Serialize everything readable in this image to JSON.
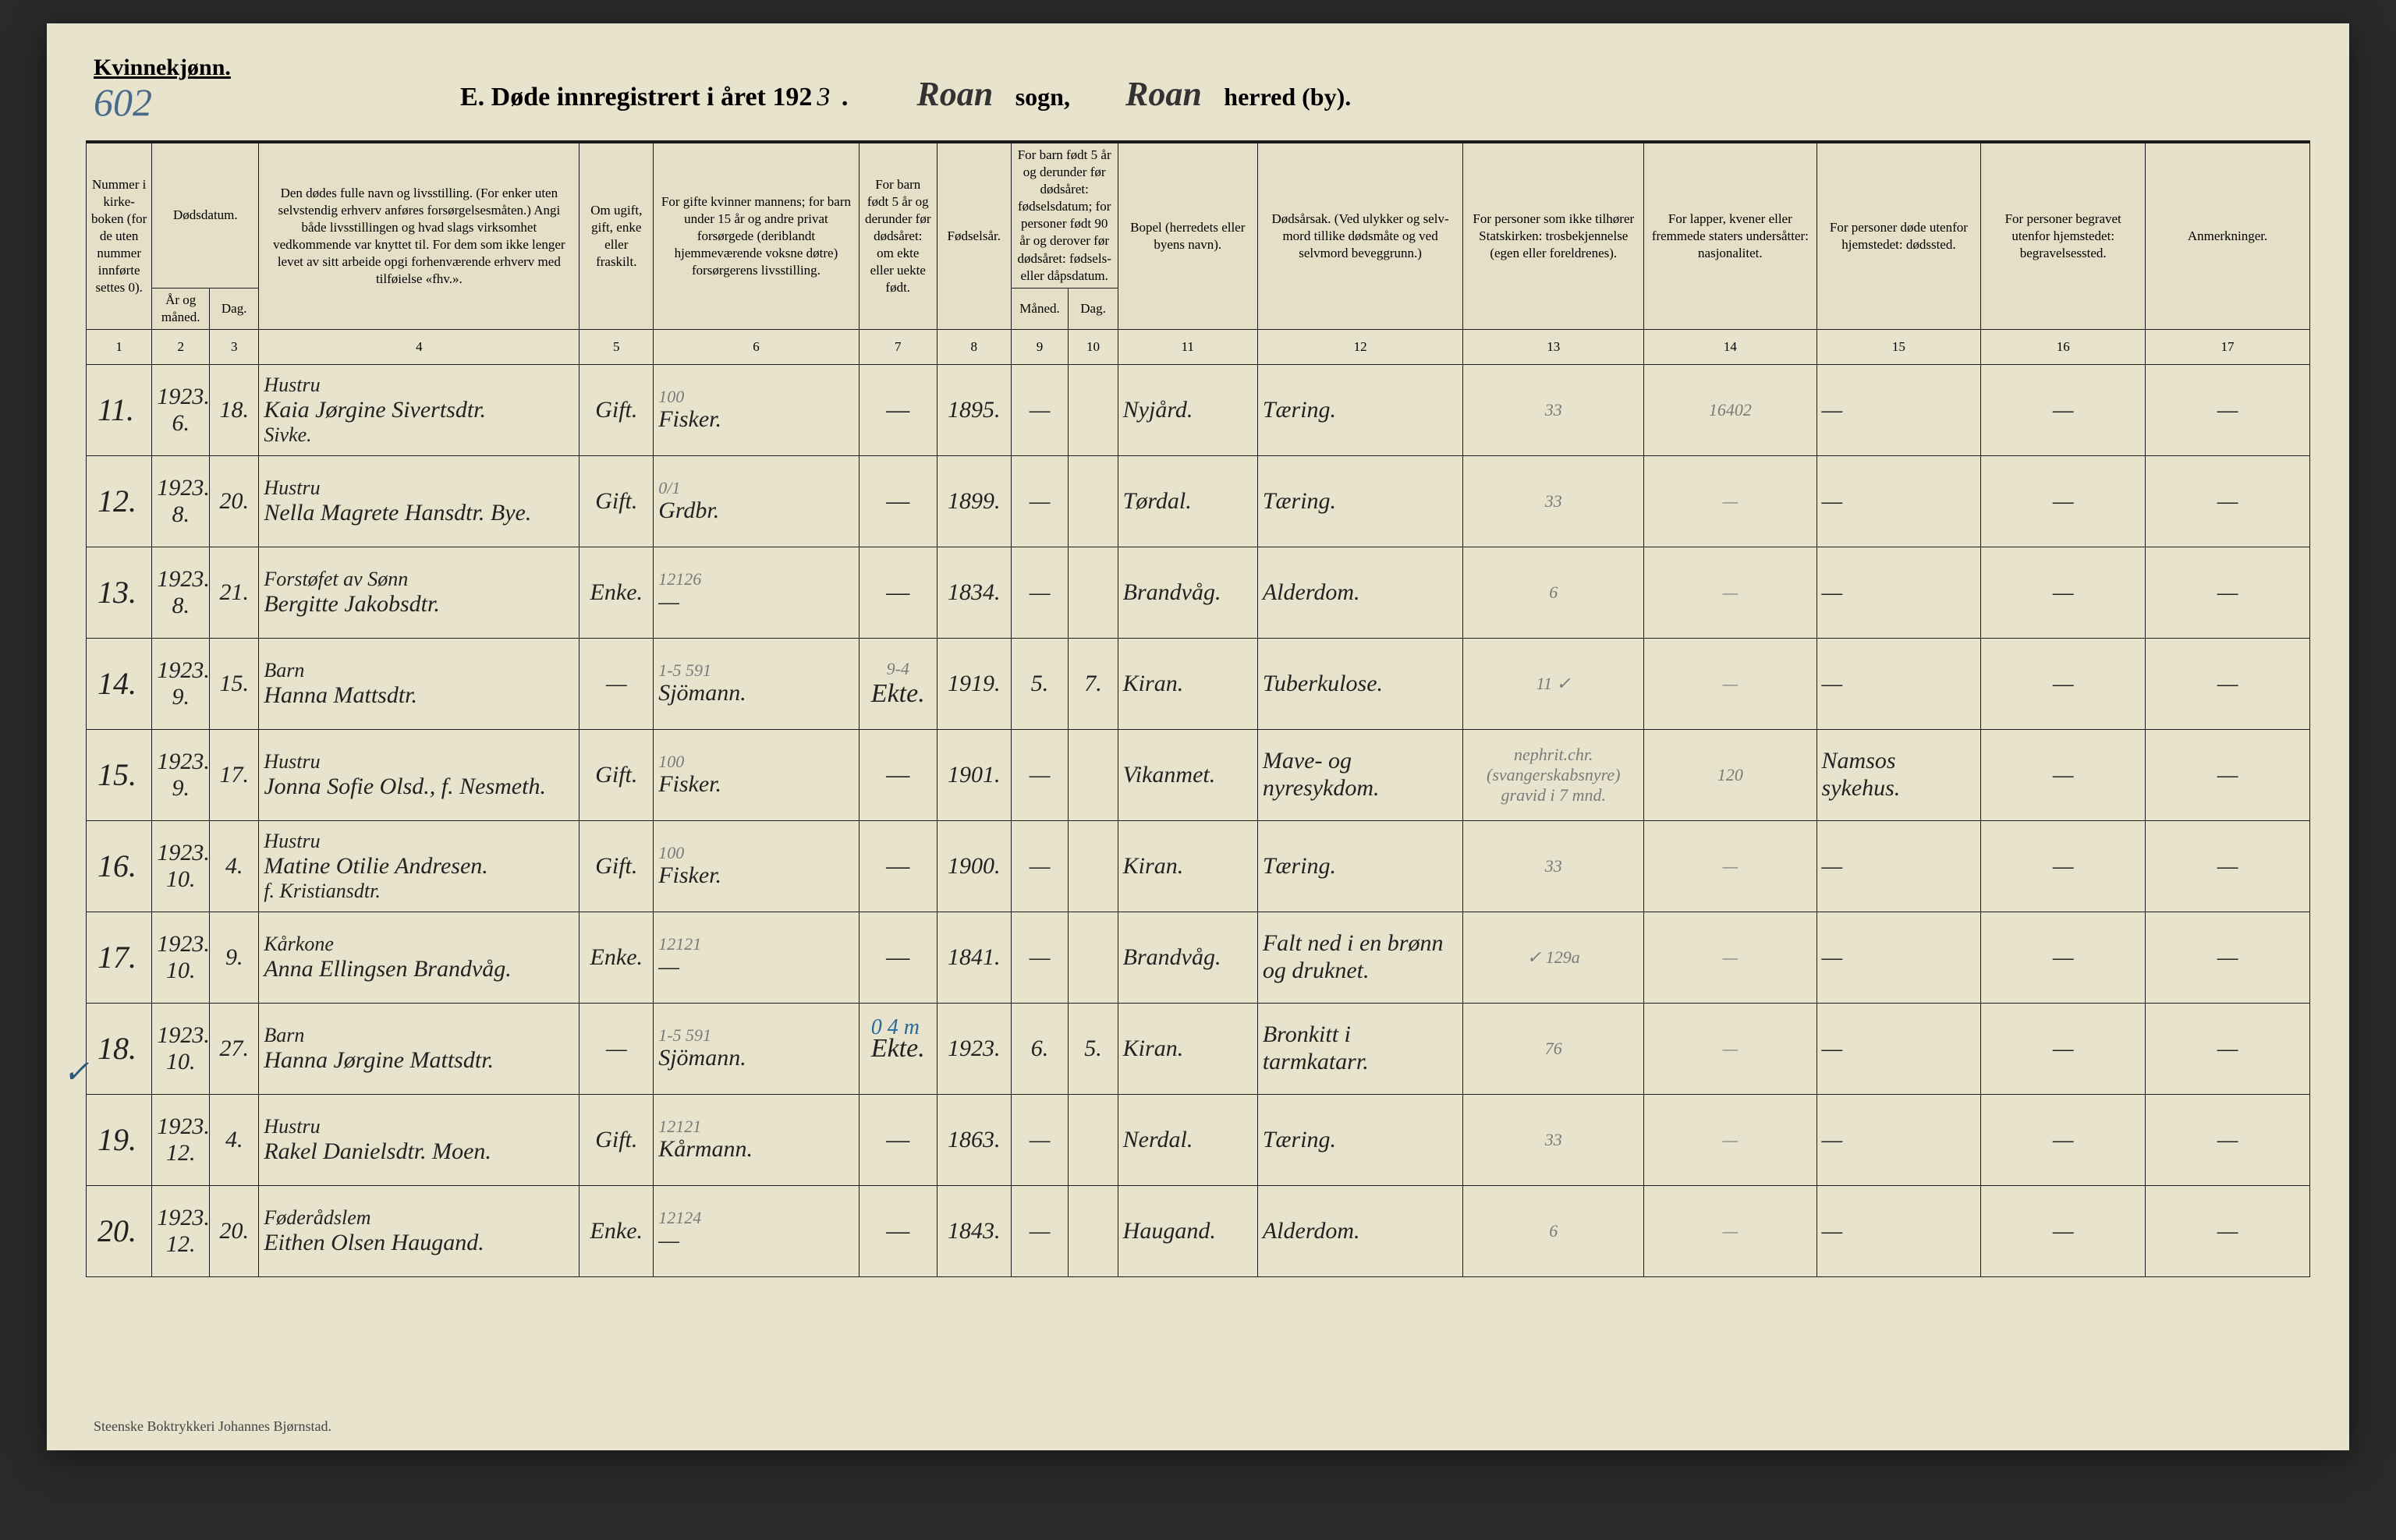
{
  "header": {
    "gender": "Kvinnekjønn.",
    "folio": "602",
    "title_prefix": "E.   Døde innregistrert i året 192",
    "year_suffix": "3",
    "title_dot": " .",
    "sogn_value": "Roan",
    "sogn_label": "sogn,",
    "herred_value": "Roan",
    "herred_label": "herred (by)."
  },
  "columns": {
    "c1": "Nummer i kirke­boken (for de uten nummer innførte settes 0).",
    "c2_group": "Dødsdatum.",
    "c2": "År og måned.",
    "c3": "Dag.",
    "c4": "Den dødes fulle navn og livsstilling. (For enker uten selvstendig erhverv anføres forsørgelsesmåten.) Angi både livsstillingen og hvad slags virksomhet vedkommende var knyttet til. For dem som ikke lenger levet av sitt arbeide opgi forhenværende erhverv med tilføielse «fhv.».",
    "c5": "Om ugift, gift, enke eller fraskilt.",
    "c6": "For gifte kvinner mannens; for barn under 15 år og andre privat forsørgede (deriblandt hjemmeværende voksne døtre) forsørgerens livsstilling.",
    "c7": "For barn født 5 år og derunder før døds­året: om ekte eller uekte født.",
    "c8": "Fødsels­år.",
    "c9_group": "For barn født 5 år og der­under før dødsåret: fødselsdatum; for personer født 90 år og derover før dødsåret: fødsels- eller dåpsdatum.",
    "c9": "Måned.",
    "c10": "Dag.",
    "c11": "Bopel (herredets eller byens navn).",
    "c12": "Dødsårsak. (Ved ulykker og selv­mord tillike dødsmåte og ved selvmord beveggrunn.)",
    "c13": "For personer som ikke tilhører Statskirken: trosbekjennelse (egen eller foreldrenes).",
    "c14": "For lapper, kvener eller fremmede staters undersåtter: nasjonalitet.",
    "c15": "For personer døde utenfor hjemstedet: dødssted.",
    "c16": "For personer begravet utenfor hjemstedet: begravelsessted.",
    "c17": "Anmerkninger."
  },
  "colnums": [
    "1",
    "2",
    "3",
    "4",
    "5",
    "6",
    "7",
    "8",
    "9",
    "10",
    "11",
    "12",
    "13",
    "14",
    "15",
    "16",
    "17"
  ],
  "rows": [
    {
      "n": "11.",
      "y": "1923.\n6.",
      "d": "18.",
      "name_occ": "Hustru",
      "name": "Kaia Jørgine Sivertsdtr.",
      "sub": "Sivke.",
      "stat": "Gift.",
      "prov_note": "100",
      "prov": "Fisker.",
      "c7": "—",
      "fy": "1895.",
      "m": "—",
      "dd": "",
      "res": "Nyjård.",
      "cause": "Tæring.",
      "c13": "33",
      "c14": "16402",
      "c15": "—",
      "c16": "—",
      "c17": "—"
    },
    {
      "n": "12.",
      "y": "1923.\n8.",
      "d": "20.",
      "name_occ": "Hustru",
      "name": "Nella Magrete Hansdtr. Bye.",
      "stat": "Gift.",
      "prov_note": "0/1",
      "prov": "Grdbr.",
      "c7": "—",
      "fy": "1899.",
      "m": "—",
      "dd": "",
      "res": "Tørdal.",
      "cause": "Tæring.",
      "c13": "33",
      "c14": "—",
      "c15": "—",
      "c16": "—",
      "c17": "—"
    },
    {
      "n": "13.",
      "y": "1923.\n8.",
      "d": "21.",
      "name_occ": "Forstøfet av Sønn",
      "name": "Bergitte Jakobsdtr.",
      "stat": "Enke.",
      "prov_note": "12126",
      "prov": "—",
      "c7": "—",
      "fy": "1834.",
      "m": "—",
      "dd": "",
      "res": "Brandvåg.",
      "cause": "Alderdom.",
      "c13": "6",
      "c14": "—",
      "c15": "—",
      "c16": "—",
      "c17": "—"
    },
    {
      "n": "14.",
      "y": "1923.\n9.",
      "d": "15.",
      "name_occ": "Barn",
      "name": "Hanna Mattsdtr.",
      "stat": "—",
      "prov_note": "1-5   591",
      "prov": "Sjömann.",
      "c7": "Ekte.",
      "c7_note": "9-4",
      "fy": "1919.",
      "m": "5.",
      "dd": "7.",
      "res": "Kiran.",
      "cause": "Tuberkulose.",
      "c13": "11 ✓",
      "c14": "—",
      "c15": "—",
      "c16": "—",
      "c17": "—"
    },
    {
      "n": "15.",
      "y": "1923.\n9.",
      "d": "17.",
      "name_occ": "Hustru",
      "name": "Jonna Sofie Olsd., f. Nesmeth.",
      "stat": "Gift.",
      "prov_note": "100",
      "prov": "Fisker.",
      "c7": "—",
      "fy": "1901.",
      "m": "—",
      "dd": "",
      "res": "Vikanmet.",
      "cause": "Mave- og nyresykdom.",
      "c13": "nephrit.chr. (svangerskabsnyre) gravid i 7 mnd.",
      "c14": "120",
      "c15": "Namsos sykehus.",
      "c16": "—",
      "c17": "—"
    },
    {
      "n": "16.",
      "y": "1923.\n10.",
      "d": "4.",
      "name_occ": "Hustru",
      "name": "Matine Otilie Andresen.",
      "sub": "f. Kristiansdtr.",
      "stat": "Gift.",
      "prov_note": "100",
      "prov": "Fisker.",
      "c7": "—",
      "fy": "1900.",
      "m": "—",
      "dd": "",
      "res": "Kiran.",
      "cause": "Tæring.",
      "c13": "33",
      "c14": "—",
      "c15": "—",
      "c16": "—",
      "c17": "—"
    },
    {
      "n": "17.",
      "y": "1923.\n10.",
      "d": "9.",
      "name_occ": "Kårkone",
      "name": "Anna Ellingsen Brandvåg.",
      "stat": "Enke.",
      "prov_note": "12121",
      "prov": "—",
      "c7": "—",
      "fy": "1841.",
      "m": "—",
      "dd": "",
      "res": "Brandvåg.",
      "cause": "Falt ned i en brønn og druknet.",
      "c13": "✓  129a",
      "c14": "—",
      "c15": "—",
      "c16": "—",
      "c17": "—"
    },
    {
      "n": "18.",
      "tick": "✓",
      "y": "1923.\n10.",
      "d": "27.",
      "name_occ": "Barn",
      "name": "Hanna Jørgine Mattsdtr.",
      "stat": "—",
      "prov_note": "1-5   591",
      "prov": "Sjömann.",
      "c7": "Ekte.",
      "blue": "0  4 m",
      "fy": "1923.",
      "m": "6.",
      "dd": "5.",
      "res": "Kiran.",
      "cause": "Bronkitt i tarmkatarr.",
      "c13": "76",
      "c14": "—",
      "c15": "—",
      "c16": "—",
      "c17": "—"
    },
    {
      "n": "19.",
      "y": "1923.\n12.",
      "d": "4.",
      "name_occ": "Hustru",
      "name": "Rakel Danielsdtr. Moen.",
      "stat": "Gift.",
      "prov_note": "12121",
      "prov": "Kårmann.",
      "c7": "—",
      "fy": "1863.",
      "m": "—",
      "dd": "",
      "res": "Nerdal.",
      "cause": "Tæring.",
      "c13": "33",
      "c14": "—",
      "c15": "—",
      "c16": "—",
      "c17": "—"
    },
    {
      "n": "20.",
      "y": "1923.\n12.",
      "d": "20.",
      "name_occ": "Føderådslem",
      "name": "Eithen Olsen Haugand.",
      "stat": "Enke.",
      "prov_note": "12124",
      "prov": "—",
      "c7": "—",
      "fy": "1843.",
      "m": "—",
      "dd": "",
      "res": "Haugand.",
      "cause": "Alderdom.",
      "c13": "6",
      "c14": "—",
      "c15": "—",
      "c16": "—",
      "c17": "—"
    }
  ],
  "footer": "Steenske Boktrykkeri Johannes Bjørnstad."
}
